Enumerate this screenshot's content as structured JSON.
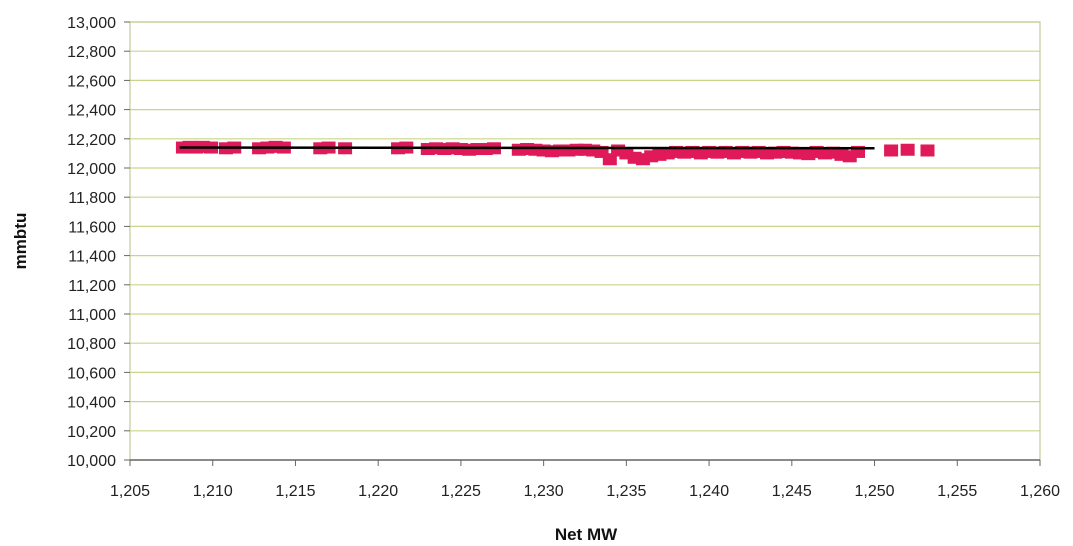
{
  "chart_data": {
    "type": "scatter",
    "xlabel": "Net MW",
    "ylabel": "mmbtu",
    "xlim": [
      1205,
      1260
    ],
    "ylim": [
      10000,
      13000
    ],
    "x_ticks": [
      1205,
      1210,
      1215,
      1220,
      1225,
      1230,
      1235,
      1240,
      1245,
      1250,
      1255,
      1260
    ],
    "x_tick_labels": [
      "1,205",
      "1,210",
      "1,215",
      "1,220",
      "1,225",
      "1,230",
      "1,235",
      "1,240",
      "1,245",
      "1,250",
      "1,255",
      "1,260"
    ],
    "y_ticks": [
      10000,
      10200,
      10400,
      10600,
      10800,
      11000,
      11200,
      11400,
      11600,
      11800,
      12000,
      12200,
      12400,
      12600,
      12800,
      13000
    ],
    "y_tick_labels": [
      "10,000",
      "10,200",
      "10,400",
      "10,600",
      "10,800",
      "11,000",
      "11,200",
      "11,400",
      "11,600",
      "11,800",
      "12,000",
      "12,200",
      "12,400",
      "12,600",
      "12,800",
      "13,000"
    ],
    "grid": true,
    "colors": {
      "marker": "#e0195a",
      "trendline": "#000000",
      "grid": "#c9d58a",
      "plot_border": "#c8c89a"
    },
    "series": [
      {
        "marker": "square",
        "x": [
          1208.2,
          1208.6,
          1209.0,
          1209.4,
          1209.9,
          1210.8,
          1211.3,
          1212.8,
          1213.3,
          1213.8,
          1214.3,
          1216.5,
          1217.0,
          1218.0,
          1221.2,
          1221.7,
          1223.0,
          1223.5,
          1224.0,
          1224.5,
          1225.0,
          1225.5,
          1226.0,
          1226.5,
          1227.0,
          1228.5,
          1229.0,
          1229.5,
          1230.0,
          1230.5,
          1231.0,
          1231.5,
          1232.0,
          1232.5,
          1233.0,
          1233.5,
          1234.0,
          1234.5,
          1235.0,
          1235.5,
          1236.0,
          1236.5,
          1237.0,
          1237.5,
          1238.0,
          1238.5,
          1239.0,
          1239.5,
          1240.0,
          1240.5,
          1241.0,
          1241.5,
          1242.0,
          1242.5,
          1243.0,
          1243.5,
          1244.0,
          1244.5,
          1245.0,
          1245.5,
          1246.0,
          1246.5,
          1247.0,
          1247.5,
          1248.0,
          1248.5,
          1249.0,
          1251.0,
          1252.0,
          1253.2
        ],
        "y": [
          12140,
          12145,
          12140,
          12145,
          12140,
          12135,
          12140,
          12135,
          12140,
          12145,
          12140,
          12135,
          12140,
          12135,
          12135,
          12140,
          12130,
          12135,
          12130,
          12135,
          12130,
          12125,
          12130,
          12130,
          12135,
          12125,
          12130,
          12125,
          12120,
          12115,
          12120,
          12120,
          12125,
          12125,
          12120,
          12110,
          12060,
          12120,
          12100,
          12070,
          12060,
          12080,
          12090,
          12100,
          12110,
          12105,
          12110,
          12100,
          12110,
          12105,
          12110,
          12100,
          12110,
          12105,
          12110,
          12100,
          12105,
          12110,
          12105,
          12100,
          12095,
          12110,
          12100,
          12105,
          12090,
          12080,
          12110,
          12120,
          12125,
          12120
        ]
      }
    ],
    "trendline": {
      "x": [
        1208,
        1250
      ],
      "y": [
        12140,
        12135
      ]
    }
  }
}
